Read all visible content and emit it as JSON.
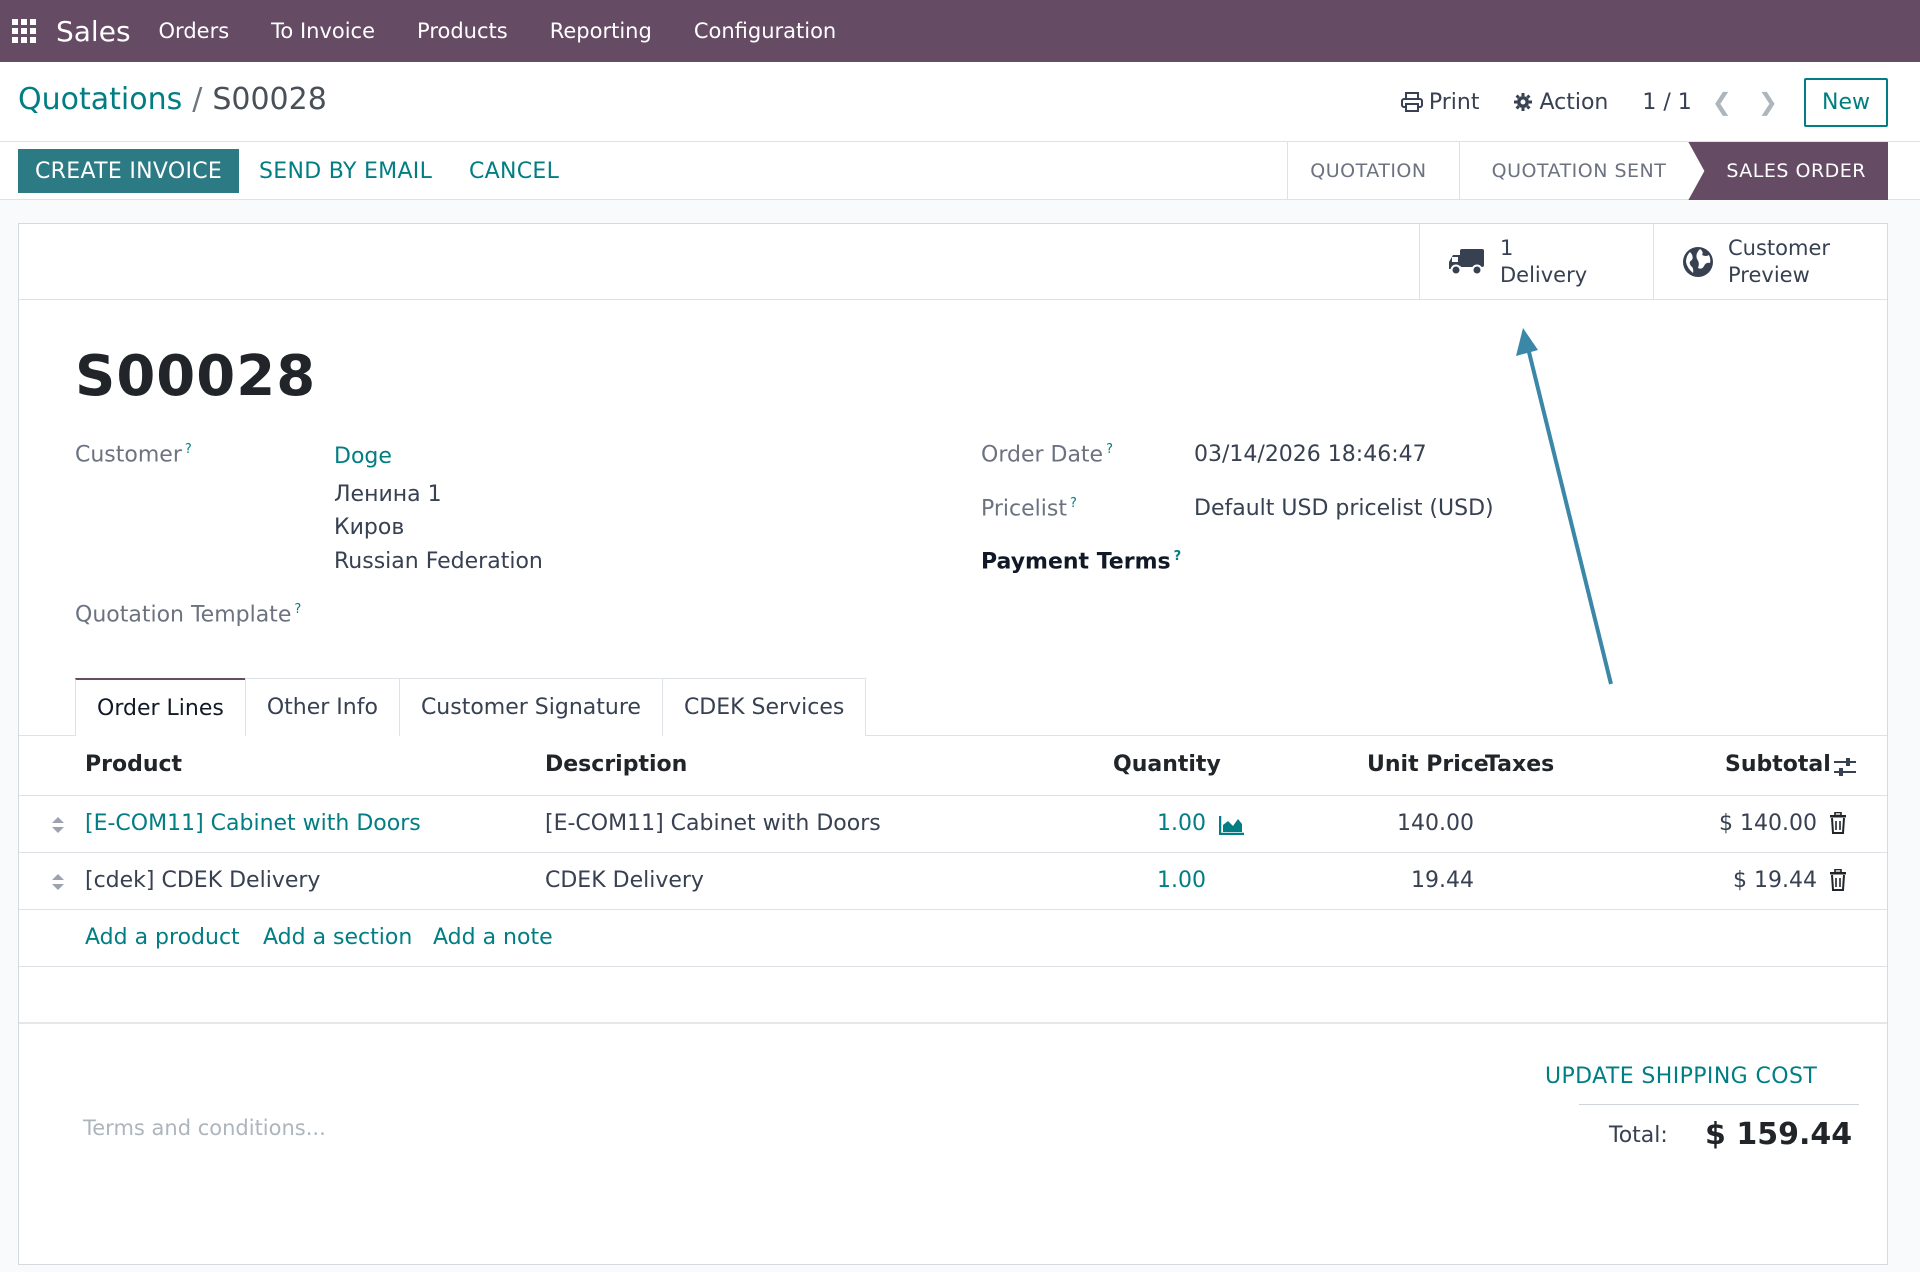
{
  "navbar": {
    "app_name": "Sales",
    "menu": [
      "Orders",
      "To Invoice",
      "Products",
      "Reporting",
      "Configuration"
    ]
  },
  "control_panel": {
    "breadcrumb_parent": "Quotations",
    "breadcrumb_separator": "/",
    "breadcrumb_current": "S00028",
    "print_label": "Print",
    "action_label": "Action",
    "pager": "1 / 1",
    "new_label": "New"
  },
  "statusbar": {
    "create_invoice": "CREATE INVOICE",
    "send_by_email": "SEND BY EMAIL",
    "cancel": "CANCEL",
    "stages": [
      "QUOTATION",
      "QUOTATION SENT",
      "SALES ORDER"
    ],
    "active_stage": "SALES ORDER"
  },
  "smart_buttons": {
    "delivery_count": "1",
    "delivery_label": "Delivery",
    "preview_line1": "Customer",
    "preview_line2": "Preview"
  },
  "form": {
    "title": "S00028",
    "customer_label": "Customer",
    "customer_name": "Doge",
    "address_line1": "Ленина 1",
    "address_line2": "Киров",
    "address_line3": "Russian Federation",
    "quotation_template_label": "Quotation Template",
    "order_date_label": "Order Date",
    "order_date_value": "03/14/2026 18:46:47",
    "pricelist_label": "Pricelist",
    "pricelist_value": "Default USD pricelist (USD)",
    "payment_terms_label": "Payment Terms",
    "help_mark": "?"
  },
  "tabs": [
    "Order Lines",
    "Other Info",
    "Customer Signature",
    "CDEK Services"
  ],
  "order_lines": {
    "headers": {
      "product": "Product",
      "description": "Description",
      "quantity": "Quantity",
      "unit_price": "Unit Price",
      "taxes": "Taxes",
      "subtotal": "Subtotal"
    },
    "rows": [
      {
        "product": "[E-COM11] Cabinet with Doors",
        "description": "[E-COM11] Cabinet with Doors",
        "quantity": "1.00",
        "unit_price": "140.00",
        "subtotal": "$ 140.00"
      },
      {
        "product": "[cdek] CDEK Delivery",
        "description": "CDEK Delivery",
        "quantity": "1.00",
        "unit_price": "19.44",
        "subtotal": "$ 19.44"
      }
    ],
    "add_product": "Add a product",
    "add_section": "Add a section",
    "add_note": "Add a note"
  },
  "footer": {
    "terms_placeholder": "Terms and conditions...",
    "update_shipping": "UPDATE SHIPPING COST",
    "total_label": "Total:",
    "total_value": "$ 159.44"
  },
  "colors": {
    "navbar": "#654b64",
    "accent": "#017e84",
    "primary_button": "#2c7a84",
    "annotation_arrow": "#3a87a8"
  }
}
